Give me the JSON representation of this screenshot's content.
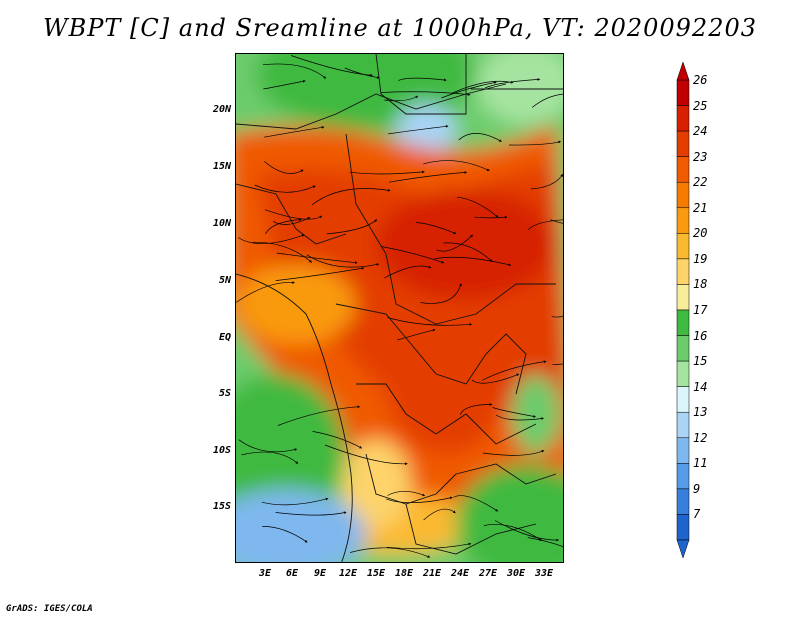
{
  "title": "WBPT [C] and Sreamline at 1000hPa, VT: 2020092203",
  "lat_ticks": [
    "20N",
    "15N",
    "10N",
    "5N",
    "EQ",
    "5S",
    "10S",
    "15S"
  ],
  "lon_ticks": [
    "3E",
    "6E",
    "9E",
    "12E",
    "15E",
    "18E",
    "21E",
    "24E",
    "27E",
    "30E",
    "33E"
  ],
  "colorbar": {
    "labels": [
      "26",
      "25",
      "24",
      "23",
      "22",
      "21",
      "20",
      "19",
      "18",
      "17",
      "16",
      "15",
      "14",
      "13",
      "12",
      "11",
      "9",
      "7"
    ],
    "colors": [
      "#c00000",
      "#d62000",
      "#e33d00",
      "#f05a00",
      "#f57a00",
      "#f99a10",
      "#fbb930",
      "#fdd36a",
      "#f8ee9a",
      "#3fb93f",
      "#6ccc6c",
      "#a5e4a0",
      "#dcf5fa",
      "#a9d4f5",
      "#7fb8ee",
      "#579ce6",
      "#3680dc",
      "#1e64cc"
    ]
  },
  "credit": "GrADS: IGES/COLA"
}
